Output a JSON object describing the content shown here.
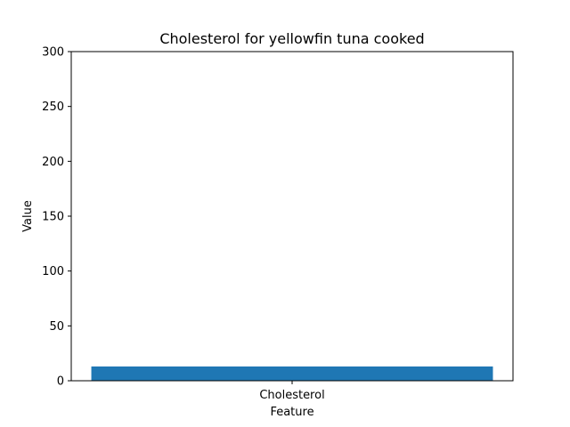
{
  "chart_data": {
    "type": "bar",
    "title": "Cholesterol for yellowfin tuna cooked",
    "xlabel": "Feature",
    "ylabel": "Value",
    "categories": [
      "Cholesterol"
    ],
    "values": [
      13
    ],
    "ylim": [
      0,
      300
    ],
    "yticks": [
      0,
      50,
      100,
      150,
      200,
      250,
      300
    ],
    "ytick_labels": [
      "0",
      "50",
      "100",
      "150",
      "200",
      "250",
      "300"
    ],
    "grid": false,
    "legend": "none",
    "bar_color": "#1f77b4"
  }
}
